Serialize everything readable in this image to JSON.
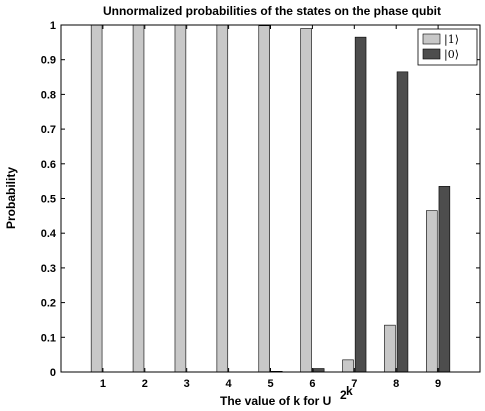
{
  "chart_data": {
    "type": "bar",
    "title": "Unnormalized probabilities of the states on the phase qubit",
    "xlabel_main": "The value of k for U",
    "xlabel_sup_base": "2",
    "xlabel_sup_exp": "k",
    "ylabel": "Probability",
    "categories": [
      "1",
      "2",
      "3",
      "4",
      "5",
      "6",
      "7",
      "8",
      "9"
    ],
    "ylim": [
      0,
      1
    ],
    "xlim": [
      0,
      10
    ],
    "yticks": [
      "0",
      "0.1",
      "0.2",
      "0.3",
      "0.4",
      "0.5",
      "0.6",
      "0.7",
      "0.8",
      "0.9",
      "1"
    ],
    "legend_position": "top-right",
    "series": [
      {
        "name": "|1⟩",
        "color": "#c8c8c8",
        "values": [
          1.0,
          1.0,
          1.0,
          1.0,
          0.998,
          0.99,
          0.035,
          0.135,
          0.465
        ]
      },
      {
        "name": "|0⟩",
        "color": "#4d4d4d",
        "values": [
          0.0,
          0.0,
          0.0,
          0.0,
          0.002,
          0.01,
          0.965,
          0.865,
          0.535
        ]
      }
    ]
  }
}
